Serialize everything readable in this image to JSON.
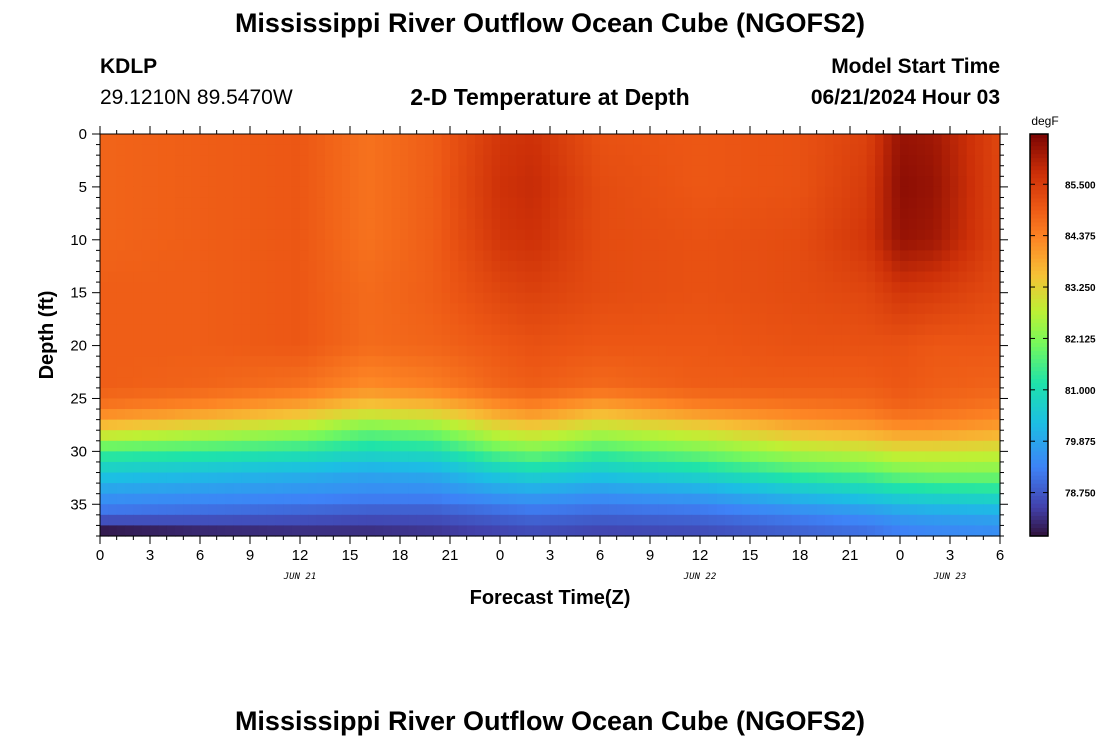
{
  "header": {
    "title": "Mississippi River Outflow Ocean Cube (NGOFS2)",
    "station_id": "KDLP",
    "station_coords": "29.1210N  89.5470W",
    "subtitle": "2-D Temperature at Depth",
    "model_start_label": "Model Start Time",
    "model_start_value": "06/21/2024 Hour 03"
  },
  "footer": {
    "title": "Mississippi River Outflow Ocean Cube (NGOFS2)"
  },
  "chart_data": {
    "type": "heatmap",
    "xlabel": "Forecast Time(Z)",
    "ylabel": "Depth (ft)",
    "x_range_hours": [
      0,
      54
    ],
    "x_ticks": [
      {
        "hour": 0,
        "label": "0"
      },
      {
        "hour": 3,
        "label": "3"
      },
      {
        "hour": 6,
        "label": "6"
      },
      {
        "hour": 9,
        "label": "9"
      },
      {
        "hour": 12,
        "label": "12"
      },
      {
        "hour": 15,
        "label": "15"
      },
      {
        "hour": 18,
        "label": "18"
      },
      {
        "hour": 21,
        "label": "21"
      },
      {
        "hour": 24,
        "label": "0"
      },
      {
        "hour": 27,
        "label": "3"
      },
      {
        "hour": 30,
        "label": "6"
      },
      {
        "hour": 33,
        "label": "9"
      },
      {
        "hour": 36,
        "label": "12"
      },
      {
        "hour": 39,
        "label": "15"
      },
      {
        "hour": 42,
        "label": "18"
      },
      {
        "hour": 45,
        "label": "21"
      },
      {
        "hour": 48,
        "label": "0"
      },
      {
        "hour": 51,
        "label": "3"
      },
      {
        "hour": 54,
        "label": "6"
      }
    ],
    "date_labels": [
      {
        "hour": 12,
        "label": "JUN 21"
      },
      {
        "hour": 36,
        "label": "JUN 22"
      },
      {
        "hour": 51,
        "label": "JUN 23"
      }
    ],
    "y_range_ft": [
      0,
      38
    ],
    "y_ticks": [
      0,
      5,
      10,
      15,
      20,
      25,
      30,
      35
    ],
    "colorbar": {
      "unit": "degF",
      "range": [
        77.8,
        86.6
      ],
      "ticks": [
        "85.500",
        "84.375",
        "83.250",
        "82.125",
        "81.000",
        "79.875",
        "78.750"
      ],
      "tick_values": [
        85.5,
        84.375,
        83.25,
        82.125,
        81.0,
        79.875,
        78.75
      ]
    },
    "depths_ft": [
      0,
      5,
      10,
      15,
      20,
      24,
      26,
      28,
      30,
      32,
      34,
      36,
      37.5
    ],
    "hours": [
      0,
      6,
      12,
      16,
      20,
      24,
      26,
      30,
      36,
      42,
      46,
      48,
      50,
      54
    ],
    "temperature_degF": [
      [
        84.8,
        84.9,
        85.0,
        84.6,
        84.9,
        85.6,
        85.7,
        85.1,
        85.0,
        85.1,
        85.4,
        86.3,
        86.2,
        85.3
      ],
      [
        84.8,
        84.9,
        85.0,
        84.6,
        84.9,
        85.7,
        85.8,
        85.2,
        85.0,
        85.1,
        85.5,
        86.4,
        86.3,
        85.3
      ],
      [
        84.8,
        84.9,
        85.0,
        84.6,
        84.9,
        85.6,
        85.7,
        85.2,
        85.1,
        85.2,
        85.6,
        86.3,
        86.2,
        85.3
      ],
      [
        84.9,
        84.9,
        85.0,
        84.7,
        84.9,
        85.3,
        85.4,
        85.2,
        85.1,
        85.2,
        85.3,
        85.6,
        85.5,
        85.2
      ],
      [
        84.9,
        84.9,
        85.0,
        84.7,
        84.8,
        85.0,
        85.1,
        85.0,
        85.0,
        85.1,
        85.1,
        85.1,
        85.0,
        85.0
      ],
      [
        84.9,
        84.8,
        84.6,
        84.2,
        84.4,
        84.8,
        84.9,
        84.7,
        84.9,
        84.9,
        84.9,
        85.0,
        84.9,
        84.8
      ],
      [
        84.5,
        84.2,
        83.8,
        83.3,
        83.5,
        84.1,
        84.3,
        83.8,
        84.3,
        84.5,
        84.6,
        84.8,
        84.7,
        84.5
      ],
      [
        83.3,
        82.9,
        82.5,
        81.9,
        82.1,
        83.0,
        83.2,
        82.7,
        83.1,
        83.7,
        83.9,
        84.1,
        84.1,
        83.9
      ],
      [
        81.5,
        81.4,
        81.2,
        80.9,
        81.0,
        81.8,
        82.0,
        81.5,
        82.0,
        82.6,
        82.8,
        83.0,
        83.0,
        82.9
      ],
      [
        80.5,
        80.3,
        80.1,
        79.9,
        80.0,
        80.6,
        80.8,
        80.5,
        80.9,
        81.5,
        81.7,
        82.0,
        82.1,
        82.1
      ],
      [
        79.7,
        79.6,
        79.5,
        79.4,
        79.4,
        79.7,
        79.8,
        79.6,
        79.8,
        80.3,
        80.6,
        80.8,
        80.9,
        81.0
      ],
      [
        79.0,
        78.9,
        78.8,
        78.7,
        78.7,
        78.9,
        79.0,
        78.9,
        79.0,
        79.3,
        79.5,
        79.7,
        79.8,
        79.9
      ],
      [
        77.9,
        78.1,
        78.2,
        78.2,
        78.3,
        78.5,
        78.6,
        78.5,
        78.6,
        78.9,
        79.1,
        79.3,
        79.4,
        79.5
      ]
    ]
  }
}
